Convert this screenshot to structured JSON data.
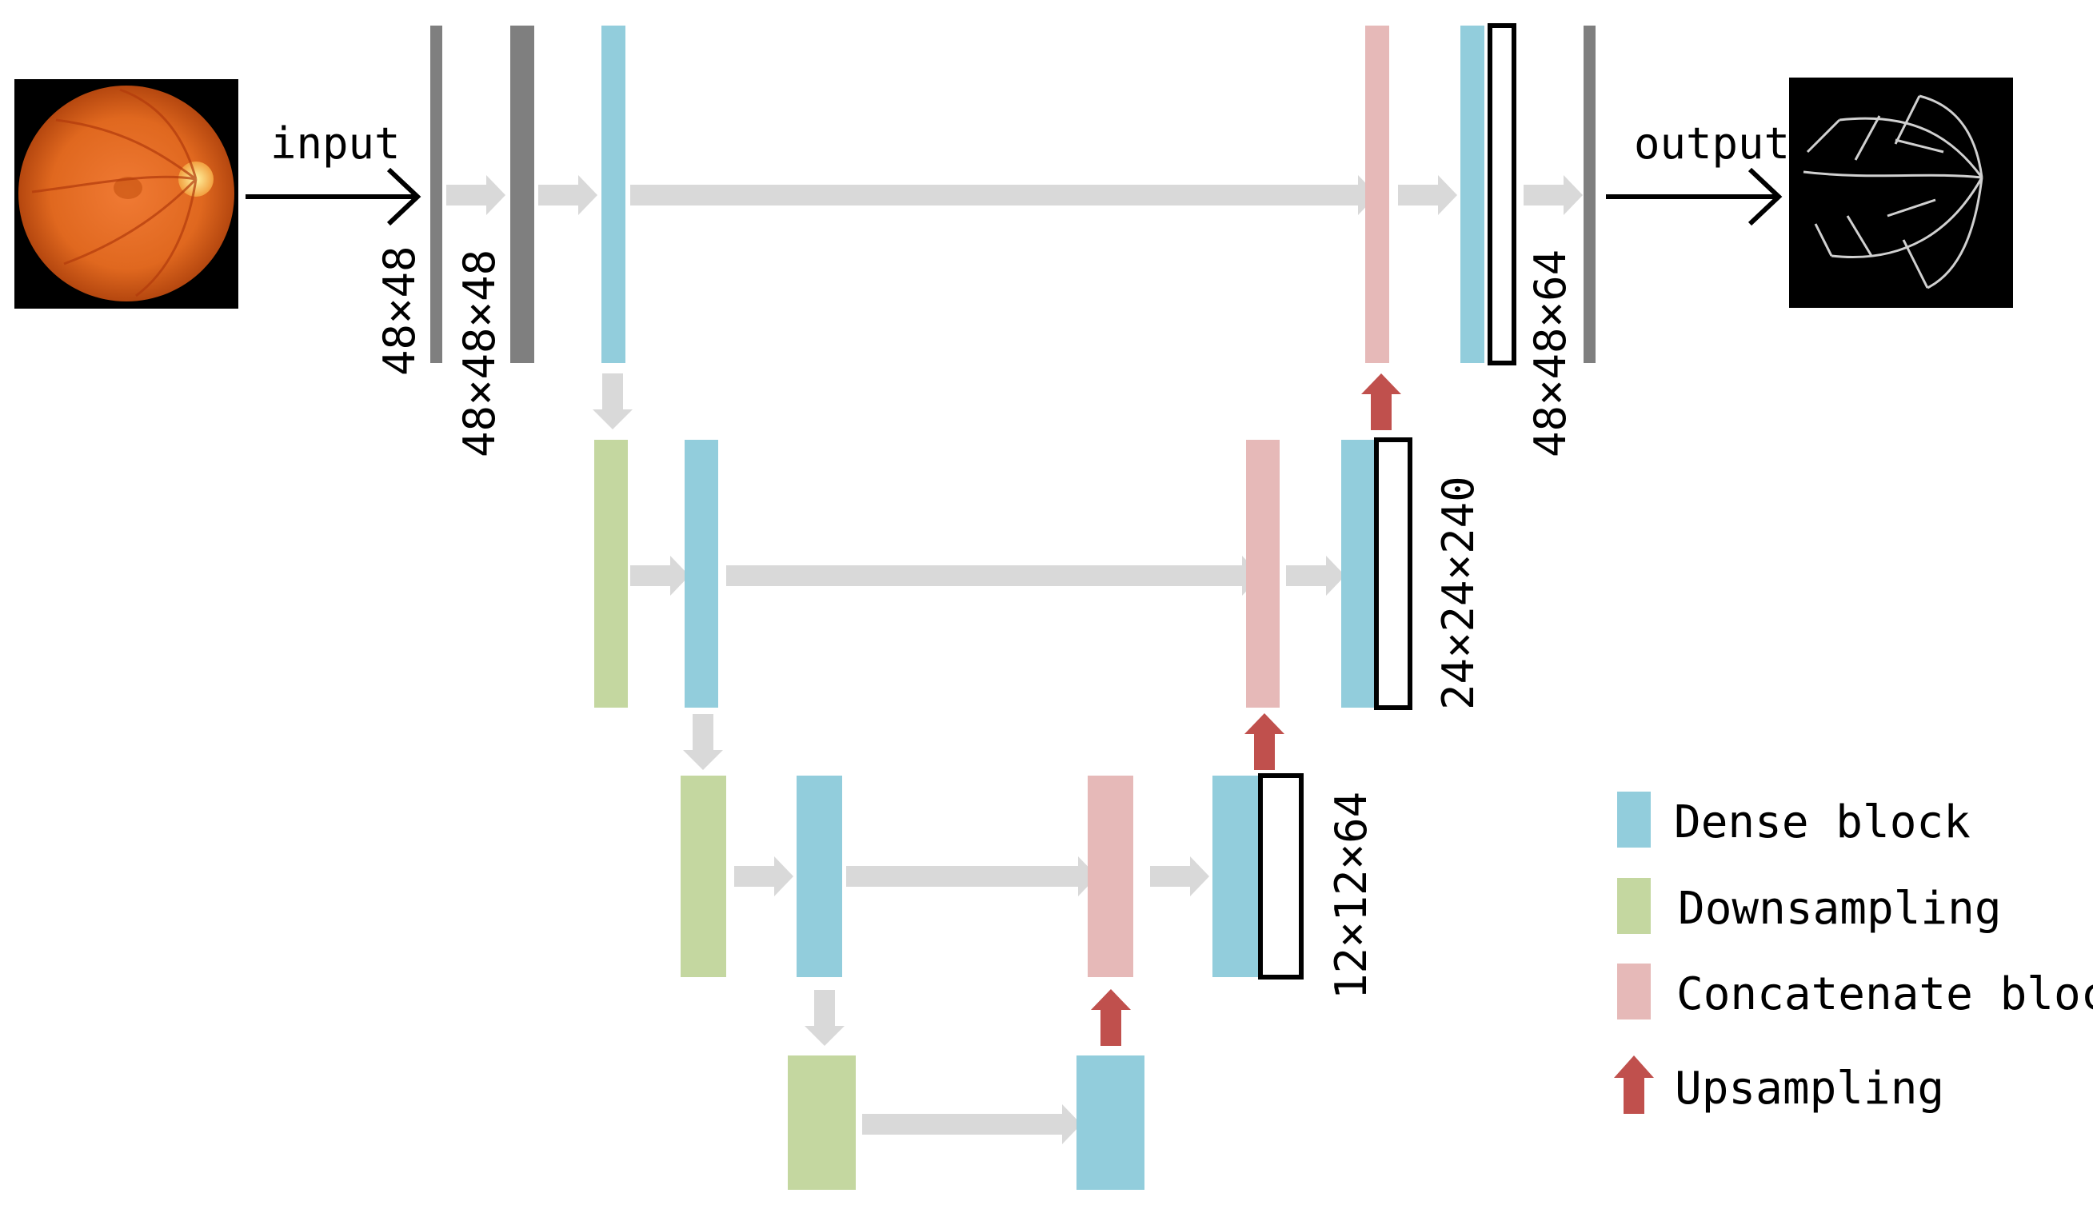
{
  "labels": {
    "input": "input",
    "output": "output"
  },
  "dimensions": {
    "d1": "48×48",
    "d2": "48×48×48",
    "d3": "48×48×64",
    "d4": "24×24×240",
    "d5": "12×12×64"
  },
  "legend": {
    "dense": "Dense block",
    "down": "Downsampling",
    "concat": "Concatenate block",
    "up": "Upsampling"
  },
  "colors": {
    "dense_block": "#92cddc",
    "downsampling": "#c4d7a0",
    "concatenate_block": "#e6b9b8",
    "upsampling": "#c0504d",
    "conv_layer": "#7f7f7f",
    "flow_arrow": "#d9d9d9"
  },
  "images": {
    "input": "retinal fundus photograph",
    "output": "vessel segmentation map"
  }
}
